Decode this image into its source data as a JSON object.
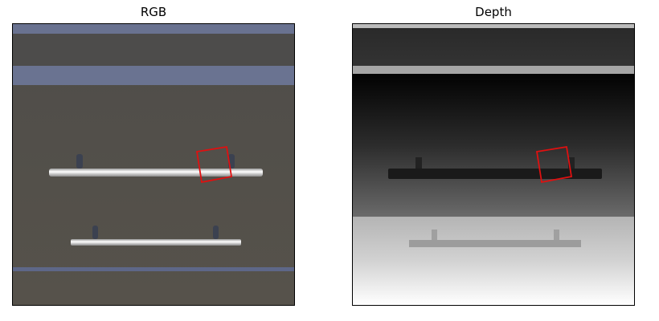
{
  "panels": {
    "rgb": {
      "title": "RGB"
    },
    "depth": {
      "title": "Depth"
    }
  },
  "colors": {
    "wall": "#55524c",
    "wall_stripe": "#6a7391",
    "bar": "#f2f2f2",
    "bracket": "#3c4250",
    "grasp_box": "#e01010",
    "depth_dark": "#050505",
    "depth_light": "#ffffff"
  }
}
